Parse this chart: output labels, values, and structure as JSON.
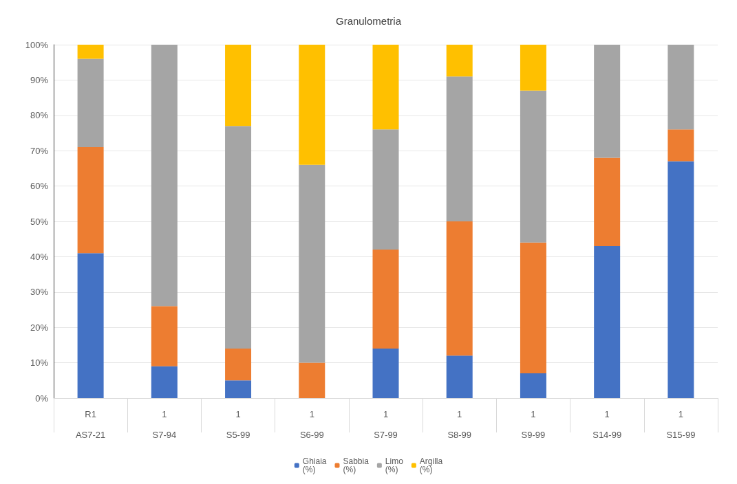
{
  "chart_data": {
    "type": "bar",
    "title": "Granulometria",
    "stacked": true,
    "grid": "y",
    "legend": "bottom",
    "categories": [
      "R1\nAS7-21",
      "1\nS7-94",
      "1\nS5-99",
      "1\nS6-99",
      "1\nS7-99",
      "1\nS8-99",
      "1\nS9-99",
      "1\nS14-99",
      "1\nS15-99"
    ],
    "series": [
      {
        "name": "Ghiaia\n(%)",
        "color": "#4472c4",
        "values": [
          41,
          9,
          5,
          0,
          14,
          12,
          7,
          43,
          67
        ]
      },
      {
        "name": "Sabbia\n(%)",
        "color": "#ed7d31",
        "values": [
          30,
          17,
          9,
          10,
          28,
          38,
          37,
          25,
          9
        ]
      },
      {
        "name": "Limo\n(%)",
        "color": "#a5a5a5",
        "values": [
          25,
          74,
          63,
          56,
          34,
          41,
          43,
          32,
          24
        ]
      },
      {
        "name": "Argilla\n(%)",
        "color": "#ffc000",
        "values": [
          4,
          0,
          23,
          34,
          24,
          9,
          13,
          0,
          0
        ]
      }
    ],
    "ylim": [
      0,
      100
    ],
    "yticks": [
      {
        "value": 0,
        "label": "0%"
      },
      {
        "value": 10,
        "label": "10%"
      },
      {
        "value": 20,
        "label": "20%"
      },
      {
        "value": 30,
        "label": "30%"
      },
      {
        "value": 40,
        "label": "40%"
      },
      {
        "value": 50,
        "label": "50%"
      },
      {
        "value": 60,
        "label": "60%"
      },
      {
        "value": 70,
        "label": "70%"
      },
      {
        "value": 80,
        "label": "80%"
      },
      {
        "value": 90,
        "label": "90%"
      },
      {
        "value": 100,
        "label": "100%"
      }
    ]
  }
}
